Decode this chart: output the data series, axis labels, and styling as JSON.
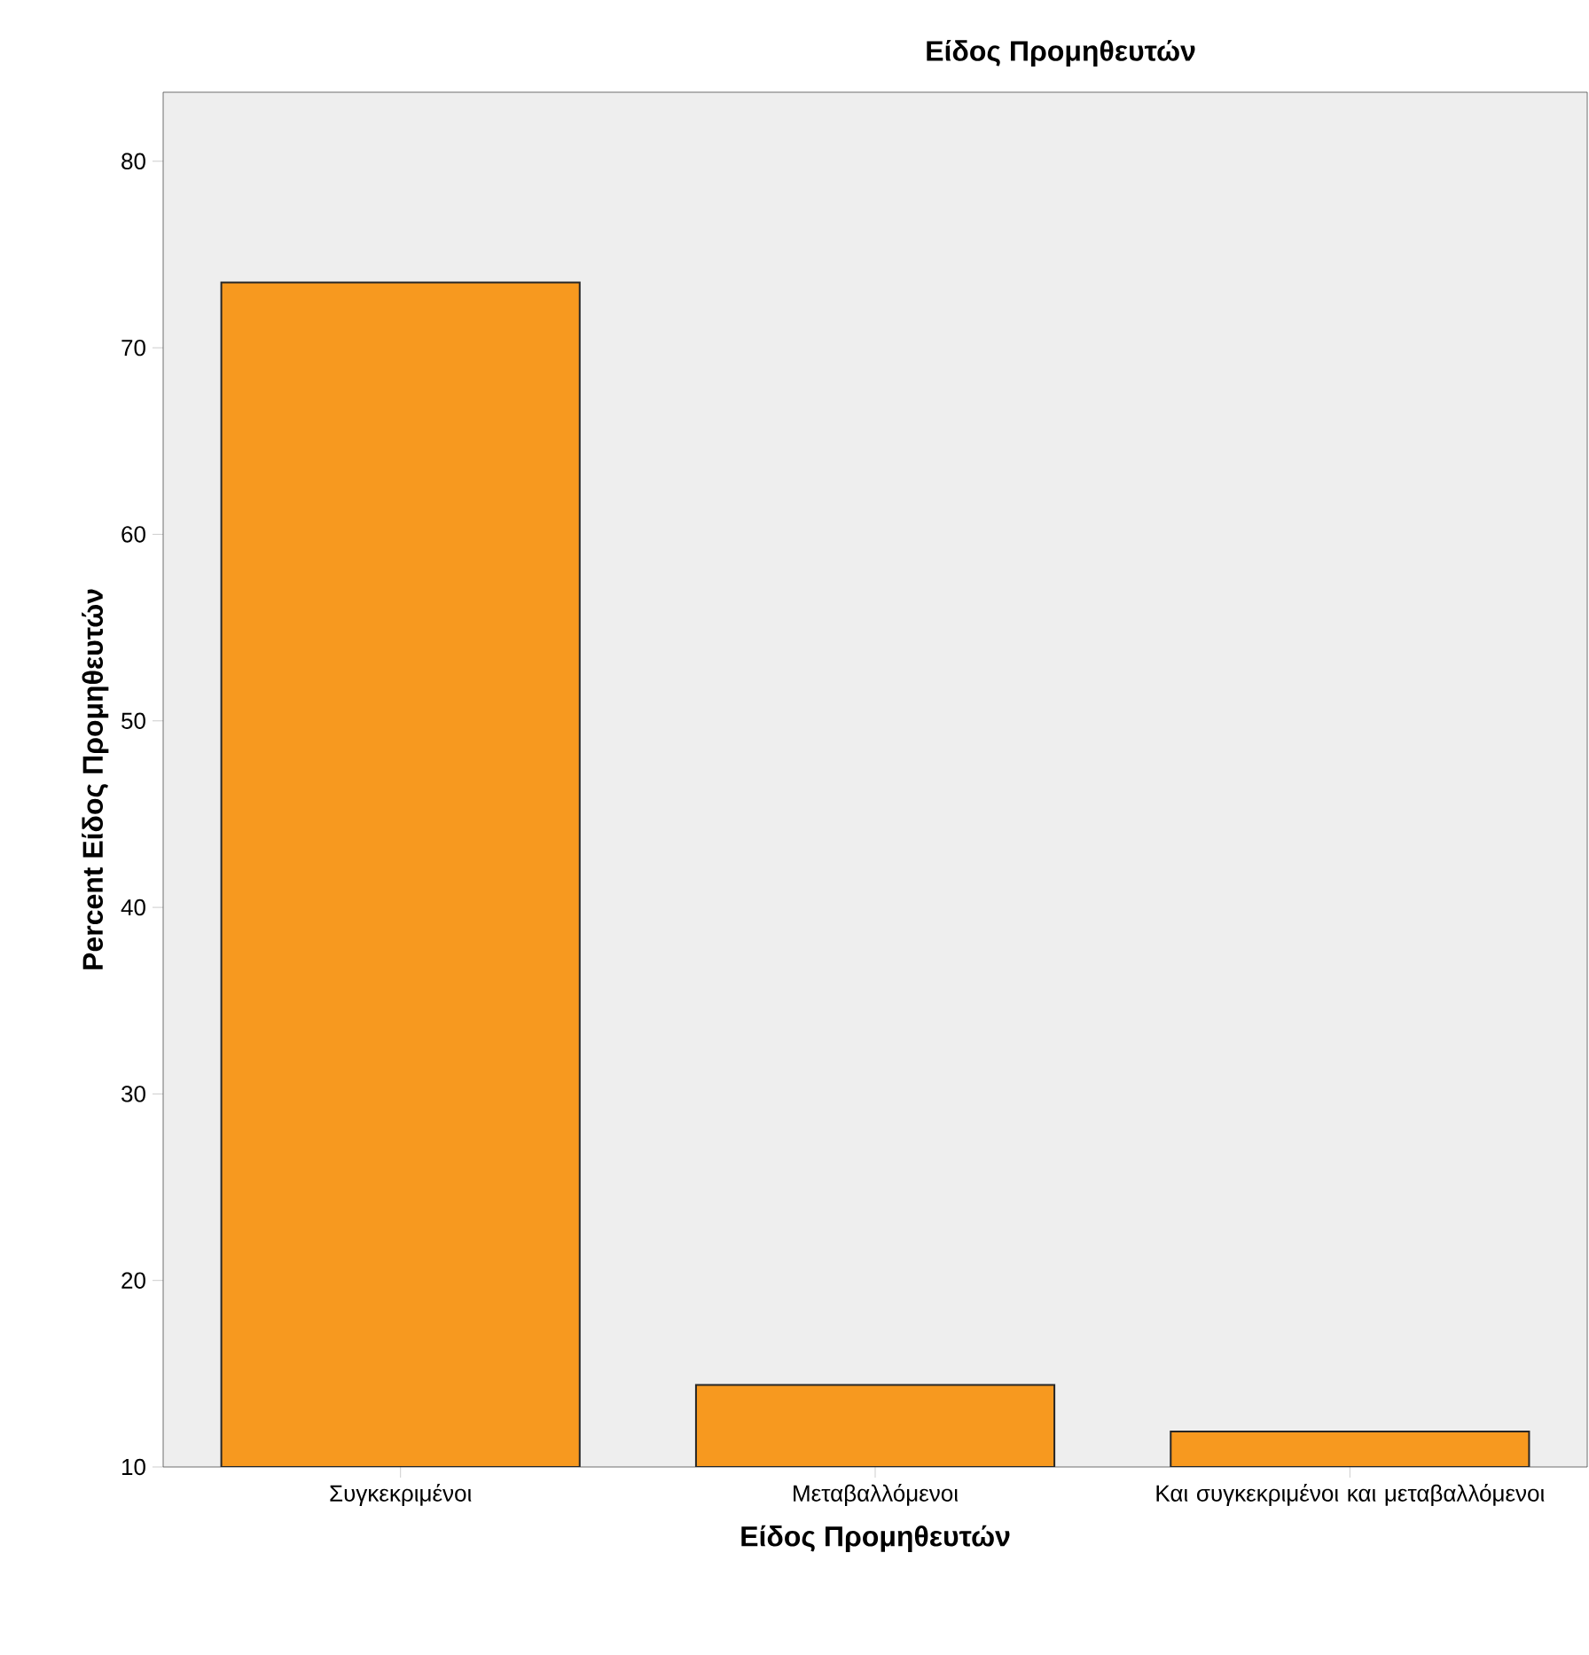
{
  "chart_data": {
    "type": "bar",
    "title": "Είδος Προμηθευτών",
    "xlabel": "Είδος Προμηθευτών",
    "ylabel": "Percent Είδος Προμηθευτών",
    "categories": [
      "Συγκεκριμένοι",
      "Μεταβαλλόμενοι",
      "Και συγκεκριμένοι και μεταβαλλόμενοι"
    ],
    "values": [
      73.5,
      14.4,
      11.9
    ],
    "color": "#f7991f",
    "ylim": [
      10,
      83.7
    ],
    "yticks": [
      10,
      20,
      30,
      40,
      50,
      60,
      70,
      80
    ],
    "grid": false
  }
}
